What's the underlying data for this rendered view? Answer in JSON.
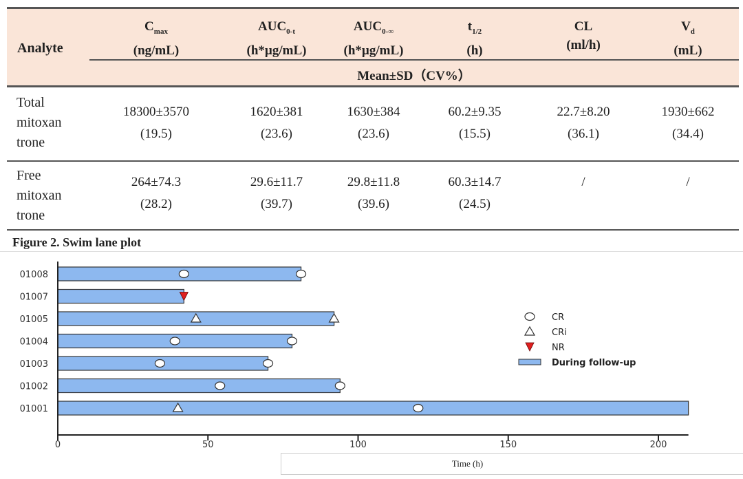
{
  "table": {
    "headers": {
      "analyte": "Analyte",
      "cmax": {
        "main": "C",
        "sub": "max",
        "unit": "(ng/mL)"
      },
      "auc0t": {
        "main": "AUC",
        "sub": "0-t",
        "unit": "(h*µg/mL)"
      },
      "auc0inf": {
        "main": "AUC",
        "sub": "0-∞",
        "unit": "(h*µg/mL)"
      },
      "thalf": {
        "main": "t",
        "sub": "1/2",
        "unit": "(h)"
      },
      "cl": {
        "main": "CL",
        "sub": "",
        "unit": "(ml/h)"
      },
      "vd": {
        "main": "V",
        "sub": "d",
        "unit": "(mL)"
      },
      "mean_sd": "Mean±SD（CV%）"
    },
    "rows": [
      {
        "label": [
          "Total",
          "mitoxan",
          "trone"
        ],
        "cells": [
          [
            "18300±3570",
            "(19.5)"
          ],
          [
            "1620±381",
            "(23.6)"
          ],
          [
            "1630±384",
            "(23.6)"
          ],
          [
            "60.2±9.35",
            "(15.5)"
          ],
          [
            "22.7±8.20",
            "(36.1)"
          ],
          [
            "1930±662",
            "(34.4)"
          ]
        ]
      },
      {
        "label": [
          "Free",
          "mitoxan",
          "trone"
        ],
        "cells": [
          [
            "264±74.3",
            "(28.2)"
          ],
          [
            "29.6±11.7",
            "(39.7)"
          ],
          [
            "29.8±11.8",
            "(39.6)"
          ],
          [
            "60.3±14.7",
            "(24.5)"
          ],
          [
            "/",
            ""
          ],
          [
            "/",
            ""
          ]
        ]
      }
    ]
  },
  "figure_title": "Figure 2. Swim lane plot",
  "chart_data": {
    "type": "bar",
    "orientation": "horizontal",
    "title": "Figure 2. Swim lane plot",
    "xlabel": "Time (h)",
    "ylabel": "",
    "xlim": [
      0,
      210
    ],
    "xticks": [
      0,
      50,
      100,
      150,
      200
    ],
    "categories": [
      "01008",
      "01007",
      "01005",
      "01004",
      "01003",
      "01002",
      "01001"
    ],
    "values": [
      81,
      42,
      92,
      78,
      70,
      94,
      210
    ],
    "bar_color": "#8db8ef",
    "markers": [
      {
        "subject": "01008",
        "type": "CR",
        "x": 42
      },
      {
        "subject": "01008",
        "type": "CR",
        "x": 81
      },
      {
        "subject": "01007",
        "type": "NR",
        "x": 42
      },
      {
        "subject": "01005",
        "type": "CRi",
        "x": 46
      },
      {
        "subject": "01005",
        "type": "CRi",
        "x": 92
      },
      {
        "subject": "01004",
        "type": "CR",
        "x": 39
      },
      {
        "subject": "01004",
        "type": "CR",
        "x": 78
      },
      {
        "subject": "01003",
        "type": "CR",
        "x": 34
      },
      {
        "subject": "01003",
        "type": "CR",
        "x": 70
      },
      {
        "subject": "01002",
        "type": "CR",
        "x": 54
      },
      {
        "subject": "01002",
        "type": "CR",
        "x": 94
      },
      {
        "subject": "01001",
        "type": "CRi",
        "x": 40
      },
      {
        "subject": "01001",
        "type": "CR",
        "x": 120
      }
    ],
    "legend": {
      "position": "right",
      "entries": [
        "CR",
        "CRi",
        "NR",
        "During follow-up"
      ]
    },
    "nr_color": "#e02020"
  }
}
